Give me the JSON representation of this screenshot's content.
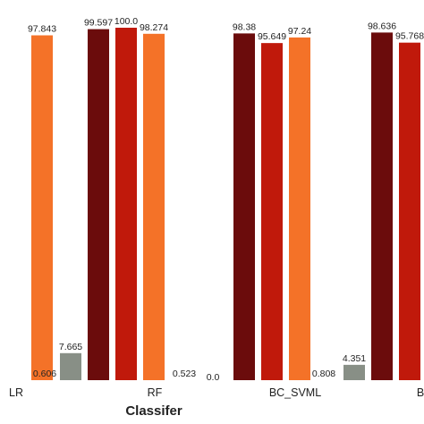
{
  "chart_data": {
    "type": "bar",
    "xlabel": "Classifer",
    "ylabel": "",
    "ylim": [
      0,
      100
    ],
    "grid": false,
    "categories": [
      "LR",
      "RF",
      "BC_SVML",
      "B"
    ],
    "series": [
      {
        "color": "#888f86",
        "values": [
          null,
          7.665,
          null,
          4.351
        ]
      },
      {
        "color": "#6b0c0c",
        "values": [
          null,
          99.597,
          98.38,
          98.636
        ]
      },
      {
        "color": "#c0190b",
        "values": [
          null,
          100.0,
          95.649,
          95.768
        ]
      },
      {
        "color": "#f47228",
        "values": [
          97.843,
          98.274,
          97.24,
          null
        ]
      }
    ],
    "other_labels": [
      {
        "category": "LR",
        "text": "0.606"
      },
      {
        "category": "RF",
        "text": "0.523"
      },
      {
        "category": "BC_SVML",
        "text": "0.0"
      },
      {
        "category": "BC_SVML",
        "text": "0.808"
      }
    ],
    "value_labels": [
      "97.843",
      "7.665",
      "99.597",
      "100.0",
      "98.274",
      "98.38",
      "95.649",
      "97.24",
      "4.351",
      "98.636",
      "95.768"
    ]
  }
}
